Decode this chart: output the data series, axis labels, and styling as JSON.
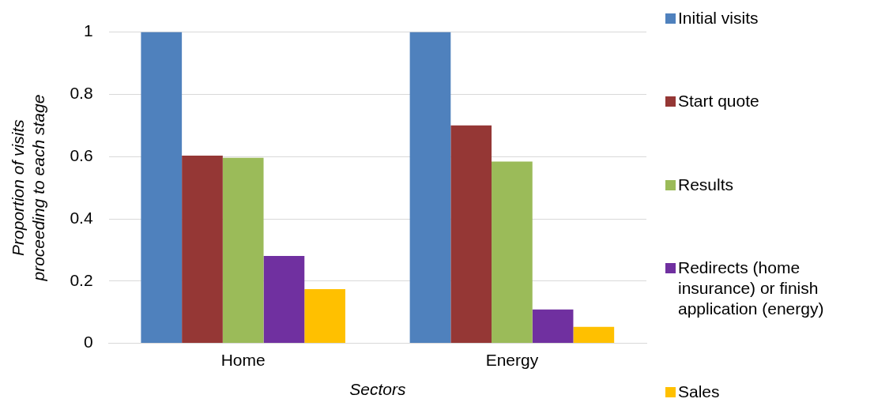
{
  "chart_data": {
    "type": "bar",
    "xlabel": "Sectors",
    "ylabel": "Proportion of visits proceeding to each stage",
    "categories": [
      "Home",
      "Energy"
    ],
    "series": [
      {
        "name": "Initial visits",
        "color": "#4f81bd",
        "values": [
          1,
          1
        ]
      },
      {
        "name": "Start quote",
        "color": "#953735",
        "values": [
          0.603,
          0.7
        ]
      },
      {
        "name": "Results",
        "color": "#9bbb59",
        "values": [
          0.596,
          0.584
        ]
      },
      {
        "name": "Redirects (home insurance) or finish application (energy)",
        "color": "#7030a0",
        "values": [
          0.281,
          0.109
        ]
      },
      {
        "name": "Sales",
        "color": "#ffc000",
        "values": [
          0.174,
          0.053
        ]
      }
    ],
    "ylim": [
      0,
      1
    ],
    "yticks": [
      0,
      0.2,
      0.4,
      0.6,
      0.8,
      1
    ],
    "grid": "y",
    "legend": "right"
  }
}
